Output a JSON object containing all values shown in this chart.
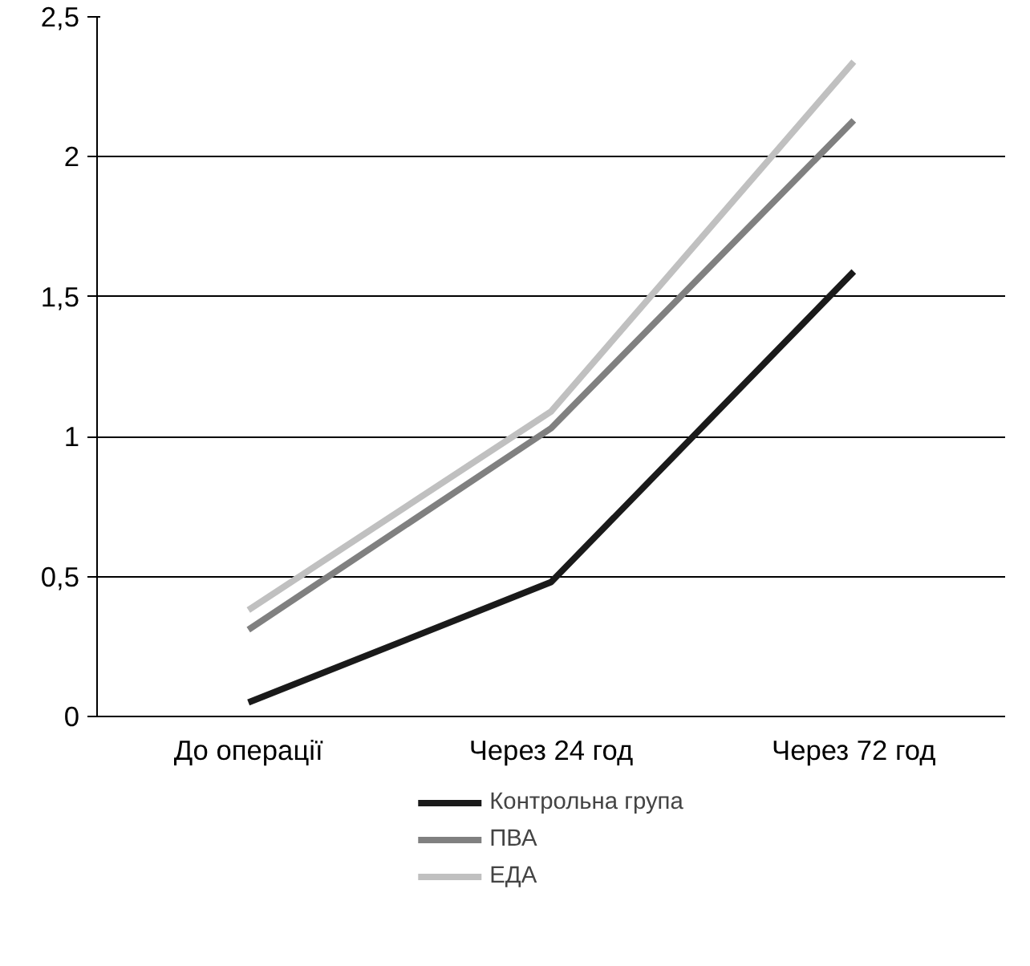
{
  "chart_data": {
    "type": "line",
    "categories": [
      "До операції",
      "Через 24 год",
      "Через 72 год"
    ],
    "series": [
      {
        "name": "Контрольна група",
        "color": "#1a1a1a",
        "values": [
          0.05,
          0.48,
          1.59
        ]
      },
      {
        "name": "ПВА",
        "color": "#808080",
        "values": [
          0.31,
          1.03,
          2.13
        ]
      },
      {
        "name": "ЕДА",
        "color": "#c0c0c0",
        "values": [
          0.38,
          1.09,
          2.34
        ]
      }
    ],
    "ylim": [
      0,
      2.5
    ],
    "yticks": [
      0,
      {
        "value": 0.5,
        "label": "0,5"
      },
      1,
      {
        "value": 1.5,
        "label": "1,5"
      },
      2,
      {
        "value": 2.5,
        "label": "2,5"
      }
    ],
    "grid": "y",
    "legend": "bottom",
    "marker": "none",
    "line_style": "solid"
  }
}
